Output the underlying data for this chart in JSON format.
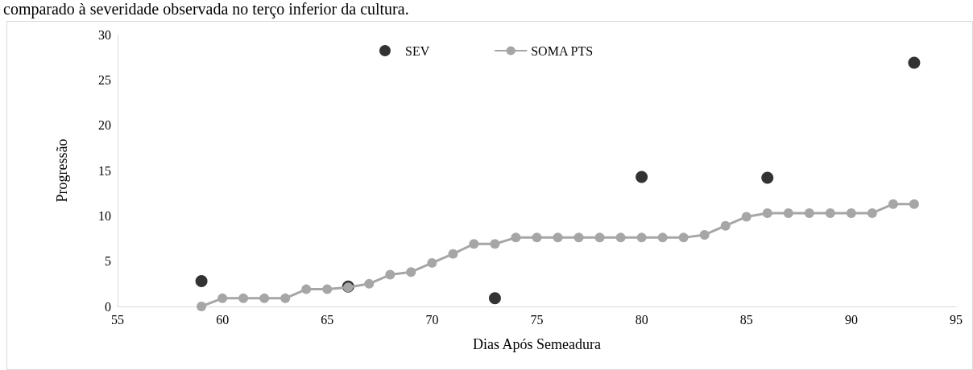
{
  "chart_data": {
    "type": "line",
    "xlabel": "Dias Após Semeadura",
    "ylabel": "Progressão",
    "annotations": [
      "comparado à severidade observada no terço inferior da cultura."
    ],
    "xlim": [
      55,
      95
    ],
    "xticks": [
      55,
      60,
      65,
      70,
      75,
      80,
      85,
      90,
      95
    ],
    "ylim": [
      0,
      30
    ],
    "yticks": [
      0,
      5,
      10,
      15,
      20,
      25,
      30
    ],
    "grid": false,
    "legend": "top",
    "marker": "circle",
    "series": [
      {
        "name": "SEV",
        "type": "scatter",
        "color": "#000000",
        "x": [
          59,
          66,
          73,
          80,
          86,
          93
        ],
        "values": [
          2.8,
          2.2,
          0.9,
          14.3,
          14.2,
          26.9
        ]
      },
      {
        "name": "SOMA PTS",
        "color": "#a6a6a6",
        "x": [
          59,
          60,
          61,
          62,
          63,
          64,
          65,
          66,
          67,
          68,
          69,
          70,
          71,
          72,
          73,
          74,
          75,
          76,
          77,
          78,
          79,
          80,
          81,
          82,
          83,
          84,
          85,
          86,
          87,
          88,
          89,
          90,
          91,
          92,
          93
        ],
        "values": [
          0,
          0.9,
          0.9,
          0.9,
          0.9,
          1.9,
          1.9,
          2.1,
          2.5,
          3.5,
          3.8,
          4.8,
          5.8,
          6.9,
          6.9,
          7.6,
          7.6,
          7.6,
          7.6,
          7.6,
          7.6,
          7.6,
          7.6,
          7.6,
          7.9,
          8.9,
          9.9,
          10.3,
          10.3,
          10.3,
          10.3,
          10.3,
          10.3,
          11.3,
          11.3
        ]
      }
    ]
  }
}
